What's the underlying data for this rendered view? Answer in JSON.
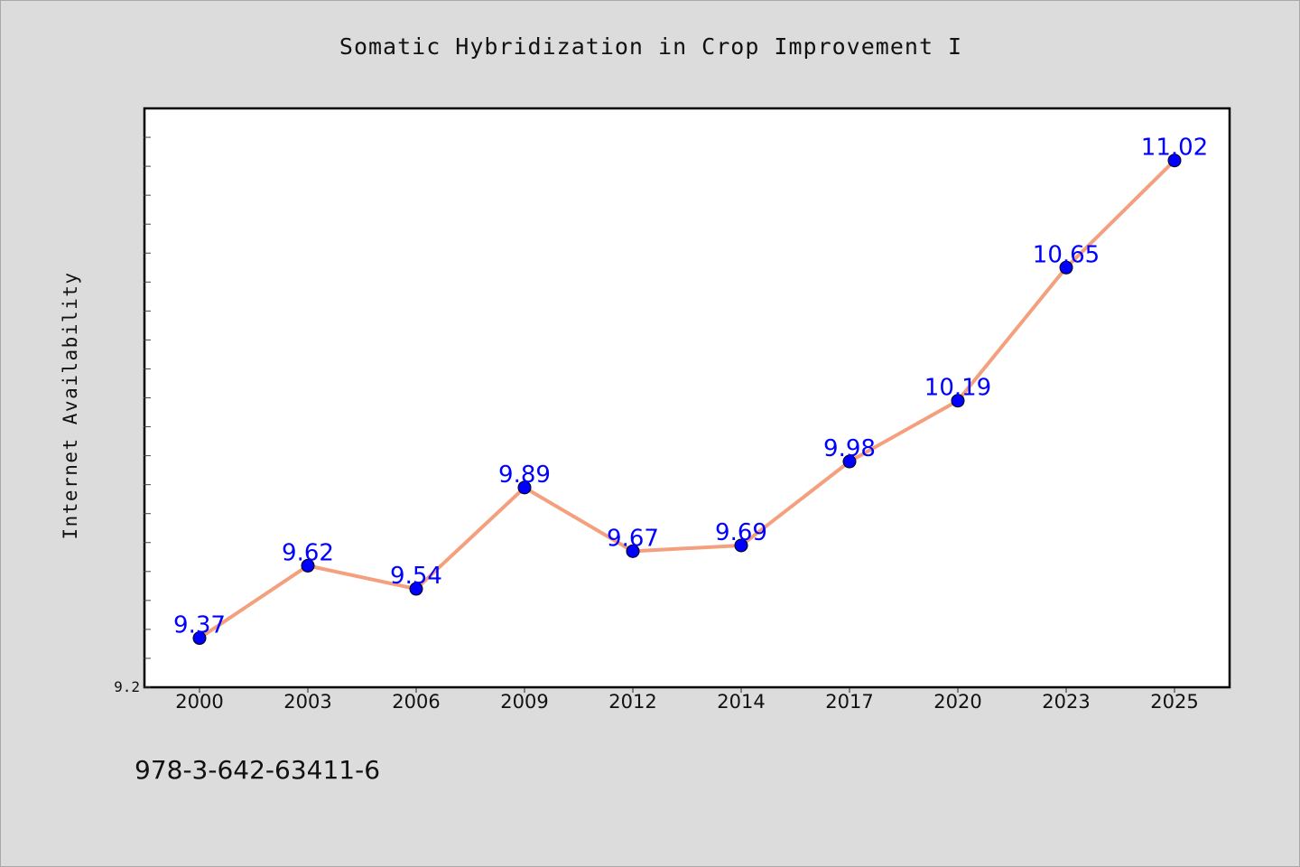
{
  "chart_data": {
    "type": "line",
    "title": "Somatic Hybridization in Crop Improvement I",
    "xlabel": "",
    "ylabel": "Internet Availability",
    "categories": [
      "2000",
      "2003",
      "2006",
      "2009",
      "2012",
      "2014",
      "2017",
      "2020",
      "2023",
      "2025"
    ],
    "series": [
      {
        "values": [
          9.37,
          9.62,
          9.54,
          9.89,
          9.67,
          9.69,
          9.98,
          10.19,
          10.65,
          11.02
        ],
        "data_labels": [
          "9.37",
          "9.62",
          "9.54",
          "9.89",
          "9.67",
          "9.69",
          "9.98",
          "10.19",
          "10.65",
          "11.02"
        ],
        "line_color": "#f4a07e",
        "marker_color": "#0000ff"
      }
    ],
    "ylim": [
      9.2,
      11.2
    ],
    "y_tick_labels": [
      "9.2"
    ],
    "grid": false,
    "legend": "none",
    "plot_background": "#ffffff",
    "figure_background": "#dcdcdc"
  },
  "footer": {
    "isbn": "978-3-642-63411-6"
  }
}
